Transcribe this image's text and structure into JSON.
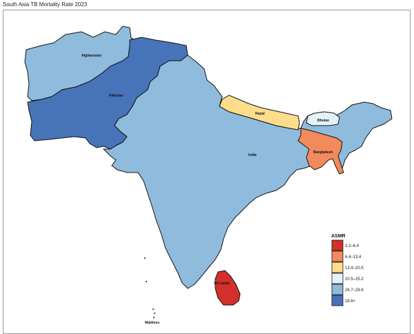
{
  "title": "South Asia TB Mortality Rate 2023",
  "legend": {
    "title": "ASMR",
    "items": [
      {
        "label": "3.2–6.4",
        "color": "#d3302b"
      },
      {
        "label": "6.4–13.4",
        "color": "#f28a5b"
      },
      {
        "label": "13.4–20.5",
        "color": "#fddd8c"
      },
      {
        "label": "20.5–25.2",
        "color": "#e3f2f7"
      },
      {
        "label": "26.7–28.6",
        "color": "#8fbbdc"
      },
      {
        "label": "28.6+",
        "color": "#4774b8"
      }
    ]
  },
  "countries": {
    "afghanistan": {
      "label": "Afghanistan",
      "color": "#8fbbdc"
    },
    "pakistan": {
      "label": "Pakistan",
      "color": "#4774b8"
    },
    "india": {
      "label": "India",
      "color": "#8fbbdc"
    },
    "nepal": {
      "label": "Nepal",
      "color": "#fddd8c"
    },
    "bhutan": {
      "label": "Bhutan",
      "color": "#e3f2f7"
    },
    "bangladesh": {
      "label": "Bangladesh",
      "color": "#f28a5b"
    },
    "sri_lanka": {
      "label": "Sri Lanka",
      "color": "#d3302b"
    },
    "maldives": {
      "label": "Maldives",
      "color": "#8fbbdc"
    }
  }
}
